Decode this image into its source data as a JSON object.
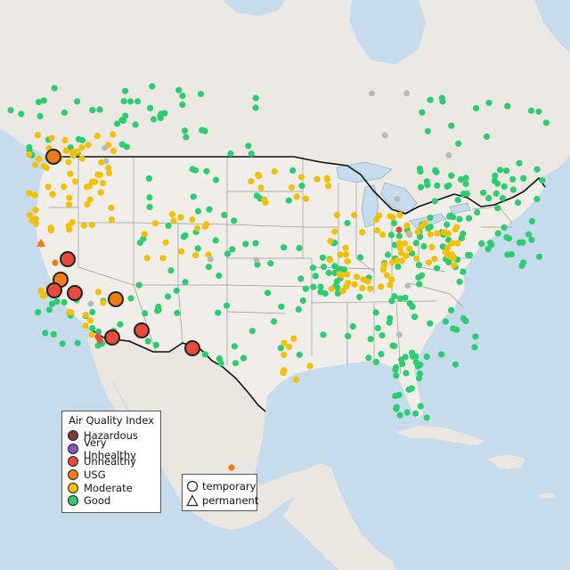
{
  "colors": {
    "ocean": "#c6dced",
    "land": "#f1eeea",
    "canada": "#ece8e3",
    "mexico": "#ebe6df",
    "state_line": "#9a9a9a",
    "border": "#111111",
    "stroke": "#222222",
    "lakes": "#c6dced"
  },
  "legend": {
    "aqi_title": "Air Quality Index",
    "categories": [
      {
        "label": "Hazardous",
        "color": "#7e3a2e"
      },
      {
        "label": "Very Unhealthy",
        "color": "#8a56b8"
      },
      {
        "label": "Unhealthy",
        "color": "#e84b3c"
      },
      {
        "label": "USG",
        "color": "#ee7d18"
      },
      {
        "label": "Moderate",
        "color": "#f0c00a"
      },
      {
        "label": "Good",
        "color": "#2ecc71"
      }
    ],
    "types": [
      {
        "label": "temporary",
        "shape": "circle"
      },
      {
        "label": "permanent",
        "shape": "triangle"
      }
    ]
  },
  "highlight_sites": [
    {
      "category": "USG"
    },
    {
      "category": "Unhealthy"
    },
    {
      "category": "USG"
    },
    {
      "category": "Unhealthy"
    },
    {
      "category": "Unhealthy"
    },
    {
      "category": "USG"
    },
    {
      "category": "Unhealthy"
    },
    {
      "category": "Unhealthy"
    },
    {
      "category": "Unhealthy"
    }
  ]
}
